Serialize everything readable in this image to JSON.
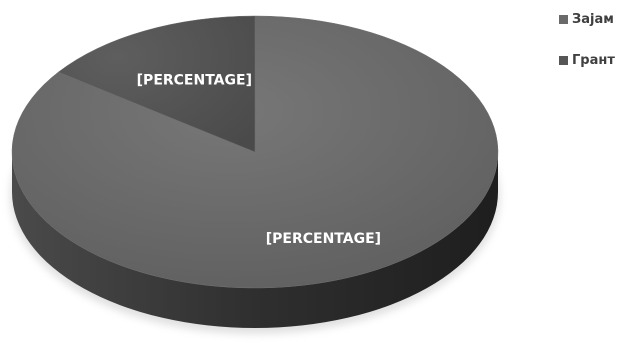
{
  "chart_data": {
    "type": "pie",
    "title": "",
    "series": [
      {
        "name": "",
        "categories": [
          "Зајам",
          "Грант"
        ],
        "values": [
          85,
          15
        ],
        "data_labels": [
          "[PERCENTAGE]",
          "[PERCENTAGE]"
        ]
      }
    ],
    "legend": {
      "position": "top-right",
      "entries": [
        "Зајам",
        "Грант"
      ]
    },
    "colors": {
      "Зајам": "#6a6a6a",
      "Грант": "#565656",
      "side_light": "#3a3a3a",
      "side_dark": "#2a2a2a",
      "label_text": "#ffffff"
    },
    "style": "3d"
  }
}
